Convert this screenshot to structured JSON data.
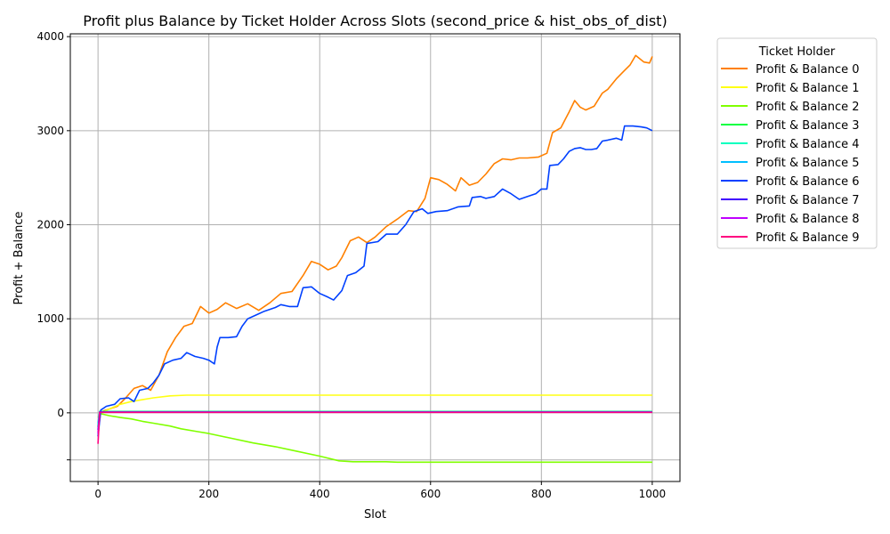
{
  "chart_data": {
    "type": "line",
    "title": "Profit plus Balance by Ticket Holder Across Slots (second_price & hist_obs_of_dist)",
    "xlabel": "Slot",
    "ylabel": "Profit + Balance",
    "xlim": [
      -50,
      1050
    ],
    "ylim": [
      -730,
      4030
    ],
    "xticks": [
      0,
      200,
      400,
      600,
      800,
      1000
    ],
    "yticks": [
      -500,
      0,
      1000,
      2000,
      3000,
      4000
    ],
    "xtick_labels": [
      "0",
      "200",
      "400",
      "600",
      "800",
      "1000"
    ],
    "ytick_labels": [
      "",
      "0",
      "1000",
      "2000",
      "3000",
      "4000"
    ],
    "grid": true,
    "legend": {
      "title": "Ticket Holder",
      "placement": "outside-right-top"
    },
    "series": [
      {
        "name": "Profit & Balance 0",
        "color": "#ff8000",
        "points": [
          [
            0,
            -200
          ],
          [
            5,
            10
          ],
          [
            20,
            40
          ],
          [
            35,
            70
          ],
          [
            50,
            160
          ],
          [
            65,
            260
          ],
          [
            80,
            290
          ],
          [
            95,
            240
          ],
          [
            110,
            400
          ],
          [
            125,
            650
          ],
          [
            140,
            800
          ],
          [
            155,
            920
          ],
          [
            170,
            950
          ],
          [
            185,
            1130
          ],
          [
            200,
            1060
          ],
          [
            215,
            1100
          ],
          [
            230,
            1170
          ],
          [
            250,
            1110
          ],
          [
            270,
            1160
          ],
          [
            290,
            1090
          ],
          [
            310,
            1170
          ],
          [
            330,
            1270
          ],
          [
            350,
            1290
          ],
          [
            370,
            1460
          ],
          [
            385,
            1610
          ],
          [
            400,
            1580
          ],
          [
            415,
            1520
          ],
          [
            430,
            1560
          ],
          [
            440,
            1650
          ],
          [
            455,
            1830
          ],
          [
            470,
            1870
          ],
          [
            485,
            1810
          ],
          [
            500,
            1870
          ],
          [
            520,
            1980
          ],
          [
            540,
            2060
          ],
          [
            560,
            2150
          ],
          [
            575,
            2140
          ],
          [
            590,
            2280
          ],
          [
            600,
            2500
          ],
          [
            615,
            2480
          ],
          [
            630,
            2430
          ],
          [
            645,
            2360
          ],
          [
            655,
            2500
          ],
          [
            670,
            2420
          ],
          [
            685,
            2450
          ],
          [
            700,
            2540
          ],
          [
            715,
            2650
          ],
          [
            730,
            2700
          ],
          [
            745,
            2690
          ],
          [
            760,
            2710
          ],
          [
            775,
            2710
          ],
          [
            795,
            2720
          ],
          [
            810,
            2760
          ],
          [
            820,
            2980
          ],
          [
            835,
            3030
          ],
          [
            850,
            3200
          ],
          [
            860,
            3320
          ],
          [
            870,
            3250
          ],
          [
            880,
            3220
          ],
          [
            895,
            3260
          ],
          [
            910,
            3400
          ],
          [
            920,
            3440
          ],
          [
            935,
            3550
          ],
          [
            950,
            3640
          ],
          [
            960,
            3700
          ],
          [
            970,
            3800
          ],
          [
            985,
            3730
          ],
          [
            995,
            3720
          ],
          [
            1000,
            3790
          ]
        ]
      },
      {
        "name": "Profit & Balance 1",
        "color": "#ffff14",
        "points": [
          [
            0,
            -100
          ],
          [
            5,
            -5
          ],
          [
            20,
            40
          ],
          [
            40,
            90
          ],
          [
            60,
            120
          ],
          [
            80,
            140
          ],
          [
            100,
            160
          ],
          [
            130,
            180
          ],
          [
            160,
            188
          ],
          [
            200,
            188
          ],
          [
            1000,
            188
          ]
        ]
      },
      {
        "name": "Profit & Balance 2",
        "color": "#80ff00",
        "points": [
          [
            0,
            -50
          ],
          [
            5,
            -10
          ],
          [
            20,
            -30
          ],
          [
            40,
            -50
          ],
          [
            60,
            -65
          ],
          [
            80,
            -90
          ],
          [
            100,
            -110
          ],
          [
            130,
            -140
          ],
          [
            150,
            -170
          ],
          [
            180,
            -200
          ],
          [
            200,
            -220
          ],
          [
            240,
            -270
          ],
          [
            280,
            -320
          ],
          [
            320,
            -360
          ],
          [
            360,
            -410
          ],
          [
            400,
            -460
          ],
          [
            435,
            -510
          ],
          [
            460,
            -520
          ],
          [
            520,
            -520
          ],
          [
            540,
            -525
          ],
          [
            1000,
            -525
          ]
        ]
      },
      {
        "name": "Profit & Balance 3",
        "color": "#00ff40",
        "points": [
          [
            0,
            -150
          ],
          [
            3,
            15
          ],
          [
            1000,
            15
          ]
        ]
      },
      {
        "name": "Profit & Balance 4",
        "color": "#00ffbf",
        "points": [
          [
            0,
            -130
          ],
          [
            3,
            12
          ],
          [
            1000,
            12
          ]
        ]
      },
      {
        "name": "Profit & Balance 5",
        "color": "#00bfff",
        "points": [
          [
            0,
            -110
          ],
          [
            3,
            10
          ],
          [
            1000,
            10
          ]
        ]
      },
      {
        "name": "Profit & Balance 6",
        "color": "#0040ff",
        "points": [
          [
            0,
            -250
          ],
          [
            5,
            30
          ],
          [
            15,
            70
          ],
          [
            30,
            90
          ],
          [
            40,
            150
          ],
          [
            55,
            160
          ],
          [
            65,
            120
          ],
          [
            75,
            240
          ],
          [
            90,
            260
          ],
          [
            100,
            320
          ],
          [
            110,
            400
          ],
          [
            120,
            520
          ],
          [
            135,
            560
          ],
          [
            150,
            580
          ],
          [
            160,
            640
          ],
          [
            175,
            600
          ],
          [
            190,
            580
          ],
          [
            200,
            560
          ],
          [
            210,
            520
          ],
          [
            215,
            700
          ],
          [
            220,
            800
          ],
          [
            235,
            800
          ],
          [
            250,
            810
          ],
          [
            260,
            920
          ],
          [
            270,
            1000
          ],
          [
            285,
            1040
          ],
          [
            300,
            1080
          ],
          [
            320,
            1120
          ],
          [
            330,
            1150
          ],
          [
            345,
            1130
          ],
          [
            360,
            1130
          ],
          [
            370,
            1330
          ],
          [
            385,
            1340
          ],
          [
            400,
            1270
          ],
          [
            415,
            1230
          ],
          [
            425,
            1200
          ],
          [
            440,
            1300
          ],
          [
            450,
            1460
          ],
          [
            465,
            1490
          ],
          [
            480,
            1560
          ],
          [
            485,
            1800
          ],
          [
            505,
            1820
          ],
          [
            520,
            1900
          ],
          [
            540,
            1900
          ],
          [
            555,
            2000
          ],
          [
            570,
            2140
          ],
          [
            585,
            2170
          ],
          [
            595,
            2120
          ],
          [
            610,
            2140
          ],
          [
            630,
            2150
          ],
          [
            650,
            2190
          ],
          [
            670,
            2200
          ],
          [
            675,
            2290
          ],
          [
            690,
            2300
          ],
          [
            700,
            2280
          ],
          [
            715,
            2300
          ],
          [
            730,
            2380
          ],
          [
            745,
            2330
          ],
          [
            760,
            2270
          ],
          [
            775,
            2300
          ],
          [
            790,
            2330
          ],
          [
            800,
            2380
          ],
          [
            810,
            2380
          ],
          [
            815,
            2630
          ],
          [
            830,
            2640
          ],
          [
            840,
            2700
          ],
          [
            850,
            2780
          ],
          [
            860,
            2810
          ],
          [
            870,
            2820
          ],
          [
            880,
            2800
          ],
          [
            890,
            2800
          ],
          [
            900,
            2810
          ],
          [
            910,
            2890
          ],
          [
            920,
            2900
          ],
          [
            935,
            2920
          ],
          [
            945,
            2900
          ],
          [
            950,
            3050
          ],
          [
            965,
            3050
          ],
          [
            980,
            3040
          ],
          [
            990,
            3030
          ],
          [
            1000,
            3000
          ]
        ]
      },
      {
        "name": "Profit & Balance 7",
        "color": "#4000ff",
        "points": [
          [
            0,
            -180
          ],
          [
            3,
            8
          ],
          [
            1000,
            8
          ]
        ]
      },
      {
        "name": "Profit & Balance 8",
        "color": "#bf00ff",
        "points": [
          [
            0,
            -220
          ],
          [
            3,
            6
          ],
          [
            1000,
            6
          ]
        ]
      },
      {
        "name": "Profit & Balance 9",
        "color": "#ff0080",
        "points": [
          [
            0,
            -330
          ],
          [
            3,
            5
          ],
          [
            1000,
            5
          ]
        ]
      }
    ]
  }
}
